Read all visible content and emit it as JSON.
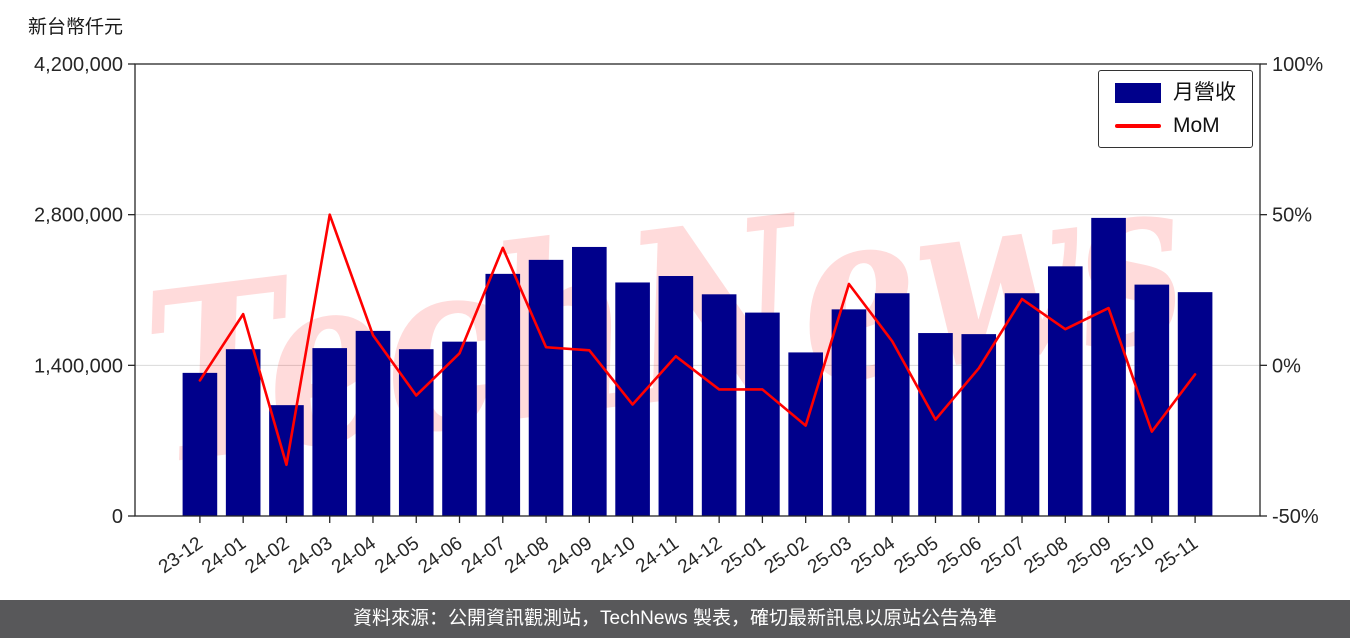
{
  "unit_label": "新台幣仟元",
  "footer": {
    "text": "資料來源：公開資訊觀測站，TechNews 製表，確切最新訊息以原站公告為準",
    "background": "#58585a",
    "text_color": "#ffffff"
  },
  "chart_data": {
    "type": "bar",
    "title": "",
    "xlabel": "",
    "ylabel_left": "新台幣仟元",
    "ylabel_right": "%",
    "grid": "horizontal",
    "watermark": "TechNews",
    "categories": [
      "23-12",
      "24-01",
      "24-02",
      "24-03",
      "24-04",
      "24-05",
      "24-06",
      "24-07",
      "24-08",
      "24-09",
      "24-10",
      "24-11",
      "24-12",
      "25-01",
      "25-02",
      "25-03",
      "25-04",
      "25-05",
      "25-06",
      "25-07",
      "25-08",
      "25-09",
      "25-10",
      "25-11"
    ],
    "series": [
      {
        "name": "月營收",
        "type": "bar",
        "axis": "left",
        "color": "#00008B",
        "values": [
          1330000,
          1550000,
          1030000,
          1560000,
          1720000,
          1550000,
          1620000,
          2250000,
          2380000,
          2500000,
          2170000,
          2230000,
          2060000,
          1890000,
          1520000,
          1920000,
          2070000,
          1700000,
          1690000,
          2070000,
          2320000,
          2770000,
          2150000,
          2080000
        ]
      },
      {
        "name": "MoM",
        "type": "line",
        "axis": "right",
        "color": "#ff0000",
        "values": [
          -5,
          17,
          -33,
          50,
          10,
          -10,
          4,
          39,
          6,
          5,
          -13,
          3,
          -8,
          -8,
          -20,
          27,
          8,
          -18,
          -1,
          22,
          12,
          19,
          -22,
          -3
        ]
      }
    ],
    "left_axis": {
      "min": 0,
      "max": 4200000,
      "ticks": [
        {
          "value": 0,
          "label": "0"
        },
        {
          "value": 1400000,
          "label": "1,400,000"
        },
        {
          "value": 2800000,
          "label": "2,800,000"
        },
        {
          "value": 4200000,
          "label": "4,200,000"
        }
      ]
    },
    "right_axis": {
      "min": -50,
      "max": 100,
      "ticks": [
        {
          "value": -50,
          "label": "-50%"
        },
        {
          "value": 0,
          "label": "0%"
        },
        {
          "value": 50,
          "label": "50%"
        },
        {
          "value": 100,
          "label": "100%"
        }
      ]
    },
    "legend": {
      "position": "top-right",
      "items": [
        {
          "label": "月營收",
          "color": "#00008B",
          "type": "bar"
        },
        {
          "label": "MoM",
          "color": "#ff0000",
          "type": "line"
        }
      ]
    }
  }
}
